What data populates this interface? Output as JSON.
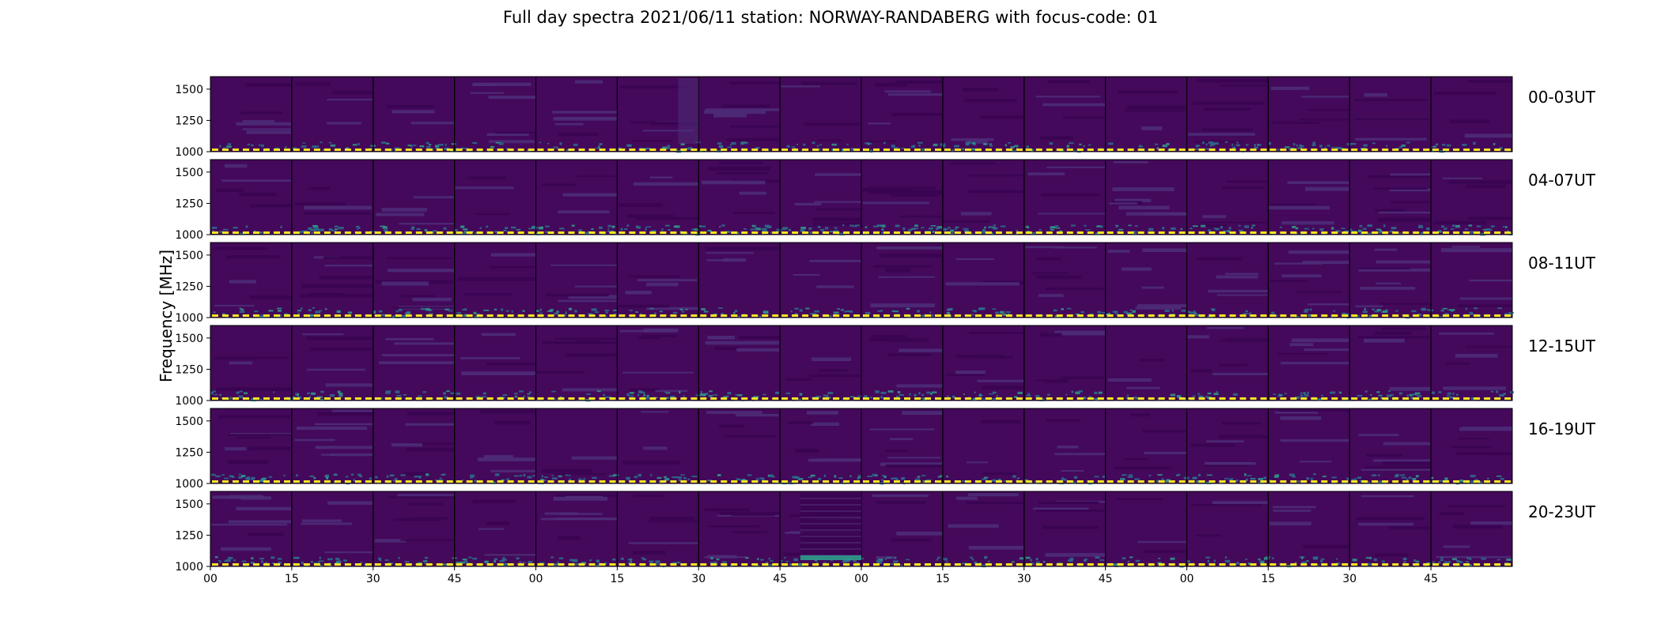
{
  "chart_data": {
    "type": "heatmap",
    "title": "Full day spectra 2021/06/11 station: NORWAY-RANDABERG with focus-code: 01",
    "ylabel": "Frequency [MHz]",
    "xlabel": "",
    "ylim": [
      1000,
      1600
    ],
    "yticks": [
      1000,
      1250,
      1500
    ],
    "xticks": [
      "00",
      "15",
      "30",
      "45",
      "00",
      "15",
      "30",
      "45",
      "00",
      "15",
      "30",
      "45",
      "00",
      "15",
      "30",
      "45"
    ],
    "rows": [
      {
        "label": "00-03UT"
      },
      {
        "label": "04-07UT"
      },
      {
        "label": "08-11UT"
      },
      {
        "label": "12-15UT"
      },
      {
        "label": "16-19UT"
      },
      {
        "label": "20-23UT"
      }
    ],
    "panels_per_row": 16,
    "colormap": "viridis",
    "colors": {
      "background": "#44095a",
      "dark_band": "#3a0452",
      "light_band": "#4e2c78",
      "low_band": "#2b6f8e",
      "bright_low": "#2f9c8c",
      "marker_dash": "#fde725",
      "frame": "#000000"
    },
    "grid": false
  }
}
